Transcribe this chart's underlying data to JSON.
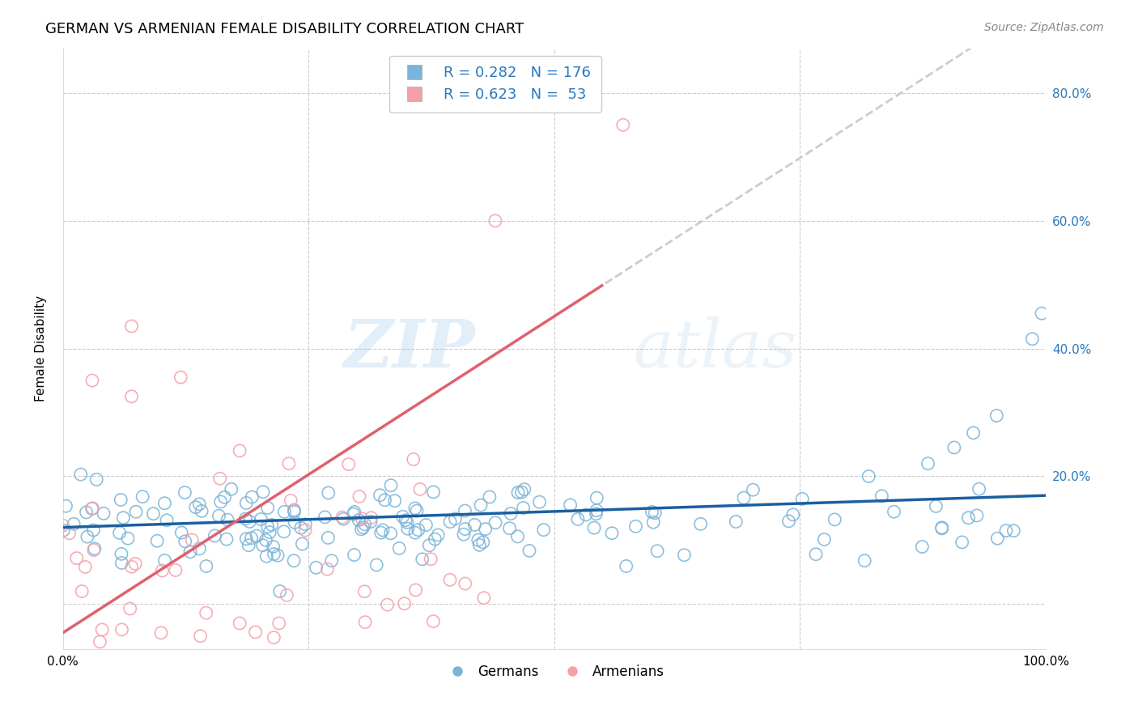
{
  "title": "GERMAN VS ARMENIAN FEMALE DISABILITY CORRELATION CHART",
  "source": "Source: ZipAtlas.com",
  "ylabel": "Female Disability",
  "xlim": [
    0.0,
    1.0
  ],
  "ylim": [
    -0.07,
    0.87
  ],
  "german_color": "#7ab4d8",
  "armenian_color": "#f4a0a8",
  "german_R": 0.282,
  "german_N": 176,
  "armenian_R": 0.623,
  "armenian_N": 53,
  "legend_label_german": "Germans",
  "legend_label_armenian": "Armenians",
  "watermark_zip": "ZIP",
  "watermark_atlas": "atlas",
  "background_color": "#ffffff",
  "grid_color": "#cccccc",
  "title_fontsize": 13,
  "axis_label_fontsize": 11,
  "tick_fontsize": 11,
  "source_fontsize": 10,
  "legend_fontsize": 12,
  "legend_R_N_color": "#2979c0",
  "right_tick_color": "#2979c0",
  "trend_german_color": "#1a5fa0",
  "trend_armenian_solid_color": "#e06070",
  "trend_armenian_dashed_color": "#cccccc"
}
